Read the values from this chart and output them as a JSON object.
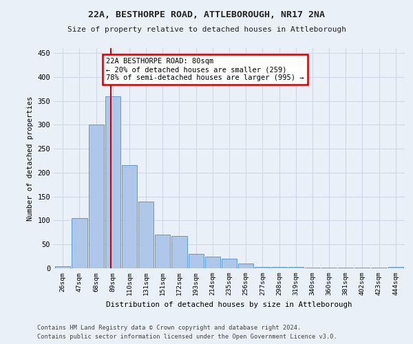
{
  "title1": "22A, BESTHORPE ROAD, ATTLEBOROUGH, NR17 2NA",
  "title2": "Size of property relative to detached houses in Attleborough",
  "xlabel": "Distribution of detached houses by size in Attleborough",
  "ylabel": "Number of detached properties",
  "footer1": "Contains HM Land Registry data © Crown copyright and database right 2024.",
  "footer2": "Contains public sector information licensed under the Open Government Licence v3.0.",
  "bar_labels": [
    "26sqm",
    "47sqm",
    "68sqm",
    "89sqm",
    "110sqm",
    "131sqm",
    "151sqm",
    "172sqm",
    "193sqm",
    "214sqm",
    "235sqm",
    "256sqm",
    "277sqm",
    "298sqm",
    "319sqm",
    "340sqm",
    "360sqm",
    "381sqm",
    "402sqm",
    "423sqm",
    "444sqm"
  ],
  "bar_values": [
    5,
    105,
    300,
    360,
    215,
    140,
    70,
    68,
    30,
    25,
    20,
    10,
    3,
    3,
    3,
    1,
    1,
    1,
    1,
    1,
    3
  ],
  "bar_color": "#aec6e8",
  "bar_edge_color": "#5b9bd5",
  "grid_color": "#d0d8e8",
  "bg_color": "#eaf0f8",
  "vline_color": "#cc0000",
  "vline_pos": 2.88,
  "annotation_text": "22A BESTHORPE ROAD: 80sqm\n← 20% of detached houses are smaller (259)\n78% of semi-detached houses are larger (995) →",
  "annotation_box_color": "#ffffff",
  "annotation_box_edge": "#cc0000",
  "ylim": [
    0,
    460
  ],
  "yticks": [
    0,
    50,
    100,
    150,
    200,
    250,
    300,
    350,
    400,
    450
  ]
}
